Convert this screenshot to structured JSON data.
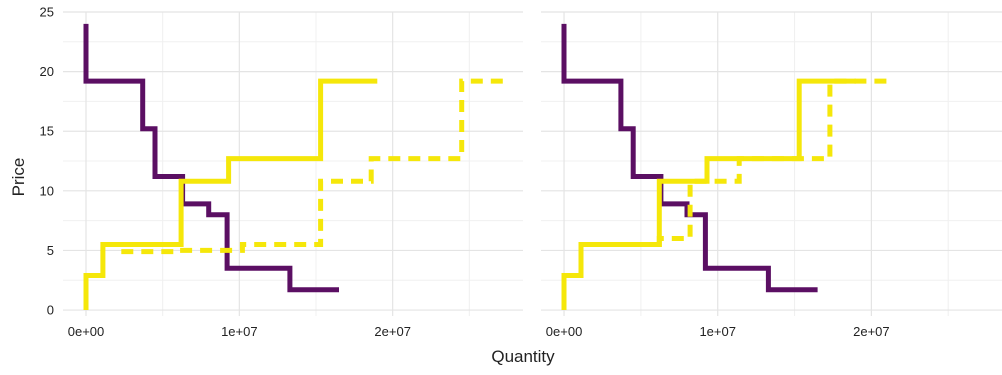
{
  "colors": {
    "demand": "#5b0f63",
    "supply": "#f5e70a",
    "grid_major": "#e4e4e4",
    "grid_minor": "#f0f0f0",
    "text": "#222222"
  },
  "chart_data": [
    {
      "type": "line",
      "step": true,
      "xlabel": "",
      "ylabel": "Price",
      "xlim": [
        -1500000,
        28500000
      ],
      "ylim": [
        -0.5,
        25
      ],
      "x_ticks": [
        0,
        10000000,
        20000000
      ],
      "x_tick_labels": [
        "0e+00",
        "1e+07",
        "2e+07"
      ],
      "y_ticks": [
        0,
        5,
        10,
        15,
        20,
        25
      ],
      "y_tick_labels": [
        "0",
        "5",
        "10",
        "15",
        "20",
        "25"
      ],
      "grid": true,
      "series": [
        {
          "style": "solid",
          "color": "demand",
          "points": [
            [
              0,
              24
            ],
            [
              0,
              19.2
            ],
            [
              3700000,
              19.2
            ],
            [
              3700000,
              15.2
            ],
            [
              4500000,
              15.2
            ],
            [
              4500000,
              11.2
            ],
            [
              6300000,
              11.2
            ],
            [
              6300000,
              8.9
            ],
            [
              8000000,
              8.9
            ],
            [
              8000000,
              8
            ],
            [
              9200000,
              8
            ],
            [
              9200000,
              3.5
            ],
            [
              13300000,
              3.5
            ],
            [
              13300000,
              1.7
            ],
            [
              16500000,
              1.7
            ]
          ]
        },
        {
          "style": "solid",
          "color": "supply",
          "points": [
            [
              0,
              0
            ],
            [
              0,
              2.9
            ],
            [
              1100000,
              2.9
            ],
            [
              1100000,
              5.5
            ],
            [
              6200000,
              5.5
            ],
            [
              6200000,
              10.8
            ],
            [
              9300000,
              10.8
            ],
            [
              9300000,
              12.7
            ],
            [
              15300000,
              12.7
            ],
            [
              15300000,
              19.2
            ],
            [
              19000000,
              19.2
            ]
          ]
        },
        {
          "style": "dashed",
          "color": "supply",
          "points": [
            [
              2300000,
              4.9
            ],
            [
              6100000,
              4.9
            ],
            [
              6100000,
              5
            ],
            [
              10200000,
              5
            ],
            [
              10200000,
              5.5
            ],
            [
              15300000,
              5.5
            ],
            [
              15300000,
              10.8
            ],
            [
              18600000,
              10.8
            ],
            [
              18600000,
              12.7
            ],
            [
              24500000,
              12.7
            ],
            [
              24500000,
              19.2
            ],
            [
              27700000,
              19.2
            ]
          ]
        }
      ]
    },
    {
      "type": "line",
      "step": true,
      "xlabel": "",
      "ylabel": "",
      "xlim": [
        -1500000,
        28500000
      ],
      "ylim": [
        -0.5,
        25
      ],
      "x_ticks": [
        0,
        10000000,
        20000000
      ],
      "x_tick_labels": [
        "0e+00",
        "1e+07",
        "2e+07"
      ],
      "y_ticks": [
        0,
        5,
        10,
        15,
        20,
        25
      ],
      "grid": true,
      "series": [
        {
          "style": "solid",
          "color": "demand",
          "points": [
            [
              0,
              24
            ],
            [
              0,
              19.2
            ],
            [
              3700000,
              19.2
            ],
            [
              3700000,
              15.2
            ],
            [
              4500000,
              15.2
            ],
            [
              4500000,
              11.2
            ],
            [
              6300000,
              11.2
            ],
            [
              6300000,
              8.9
            ],
            [
              8000000,
              8.9
            ],
            [
              8000000,
              8
            ],
            [
              9200000,
              8
            ],
            [
              9200000,
              3.5
            ],
            [
              13300000,
              3.5
            ],
            [
              13300000,
              1.7
            ],
            [
              16500000,
              1.7
            ]
          ]
        },
        {
          "style": "solid",
          "color": "supply",
          "points": [
            [
              0,
              0
            ],
            [
              0,
              2.9
            ],
            [
              1100000,
              2.9
            ],
            [
              1100000,
              5.5
            ],
            [
              6200000,
              5.5
            ],
            [
              6200000,
              10.8
            ],
            [
              9300000,
              10.8
            ],
            [
              9300000,
              12.7
            ],
            [
              15300000,
              12.7
            ],
            [
              15300000,
              19.2
            ],
            [
              19000000,
              19.2
            ]
          ]
        },
        {
          "style": "dashed",
          "color": "supply",
          "points": [
            [
              4800000,
              5.5
            ],
            [
              6200000,
              5.5
            ],
            [
              6200000,
              6
            ],
            [
              8200000,
              6
            ],
            [
              8200000,
              10.8
            ],
            [
              11400000,
              10.8
            ],
            [
              11400000,
              12.7
            ],
            [
              17300000,
              12.7
            ],
            [
              17300000,
              19.2
            ],
            [
              21000000,
              19.2
            ]
          ]
        }
      ]
    }
  ],
  "shared_xlabel": "Quantity"
}
